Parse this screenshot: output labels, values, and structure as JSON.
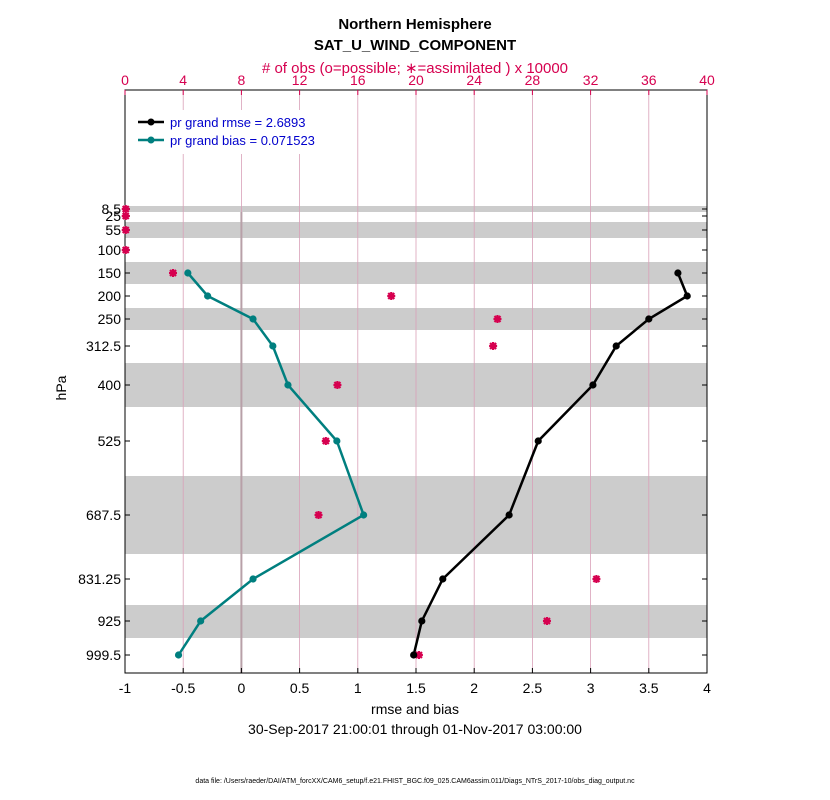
{
  "chart_data": {
    "type": "line",
    "title": "Northern Hemisphere",
    "subtitle": "SAT_U_WIND_COMPONENT",
    "top_axis_label": "# of obs (o=possible; ∗=assimilated ) x 10000",
    "xlabel": "rmse and bias",
    "ylabel": "hPa",
    "date_range": "30-Sep-2017 21:00:01 through 01-Nov-2017 03:00:00",
    "footer": "data file: /Users/raeder/DAI/ATM_forcXX/CAM6_setup/f.e21.FHIST_BGC.f09_025.CAM6assim.011/Diags_NTrS_2017-10/obs_diag_output.nc",
    "xlim": [
      -1,
      4
    ],
    "x_ticks": [
      "-1",
      "-0.5",
      "0",
      "0.5",
      "1",
      "1.5",
      "2",
      "2.5",
      "3",
      "3.5",
      "4"
    ],
    "top_xlim": [
      0,
      40
    ],
    "top_ticks": [
      "0",
      "4",
      "8",
      "12",
      "16",
      "20",
      "24",
      "28",
      "32",
      "36",
      "40"
    ],
    "levels": [
      8.5,
      25,
      55,
      100,
      150,
      200,
      250,
      312.5,
      400,
      525,
      687.5,
      831.25,
      925,
      999.5
    ],
    "level_labels": [
      "8.5",
      "25",
      "55",
      "100",
      "150",
      "200",
      "250",
      "312.5",
      "400",
      "525",
      "687.5",
      "831.25",
      "925",
      "999.5"
    ],
    "series": [
      {
        "name": "rmse",
        "legend": "pr grand rmse = 2.6893",
        "color": "#000000",
        "levels": [
          150,
          200,
          250,
          312.5,
          400,
          525,
          687.5,
          831.25,
          925,
          999.5
        ],
        "values": [
          3.75,
          3.83,
          3.5,
          3.22,
          3.02,
          2.55,
          2.3,
          1.73,
          1.55,
          1.48
        ]
      },
      {
        "name": "bias",
        "legend": "pr grand bias = 0.071523",
        "color": "#007f7f",
        "levels": [
          150,
          200,
          250,
          312.5,
          400,
          525,
          687.5,
          831.25,
          925,
          999.5
        ],
        "values": [
          -0.46,
          -0.29,
          0.1,
          0.27,
          0.4,
          0.82,
          1.05,
          0.1,
          -0.35,
          -0.54
        ]
      }
    ],
    "obs_assimilated": {
      "color": "#d6004f",
      "levels": [
        8.5,
        25,
        55,
        100,
        150,
        200,
        250,
        312.5,
        687.5,
        525,
        400,
        831.25,
        925,
        999.5
      ],
      "values": [
        0.05,
        0.05,
        0.05,
        0.05,
        3.3,
        18.3,
        25.6,
        25.3,
        13.3,
        13.8,
        14.6,
        32.4,
        29.0,
        20.2
      ]
    },
    "zero_line_x": 0,
    "grid": true
  }
}
